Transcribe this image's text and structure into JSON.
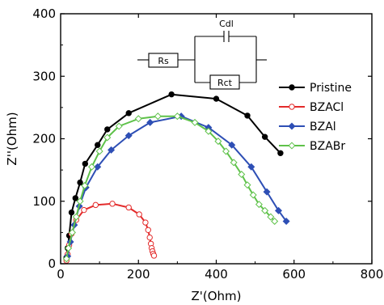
{
  "chart_data": {
    "type": "scatter",
    "xlabel": "Z'(Ohm)",
    "ylabel": "Z''(Ohm)",
    "xlim": [
      0,
      800
    ],
    "ylim": [
      0,
      400
    ],
    "xticks": [
      "0",
      "200",
      "400",
      "600",
      "800"
    ],
    "yticks": [
      "0",
      "100",
      "200",
      "300",
      "400"
    ],
    "legend_position": "right",
    "circuit": {
      "rs": "Rs",
      "cdl": "Cdl",
      "rct": "Rct"
    },
    "series": [
      {
        "name": "Pristine",
        "color": "#000000",
        "marker": "filled-circle",
        "points": [
          [
            15,
            10
          ],
          [
            18,
            25
          ],
          [
            22,
            45
          ],
          [
            28,
            82
          ],
          [
            38,
            105
          ],
          [
            50,
            130
          ],
          [
            63,
            160
          ],
          [
            95,
            190
          ],
          [
            120,
            215
          ],
          [
            175,
            241
          ],
          [
            285,
            271
          ],
          [
            400,
            264
          ],
          [
            480,
            237
          ],
          [
            525,
            203
          ],
          [
            565,
            177
          ]
        ]
      },
      {
        "name": "BZACl",
        "color": "#e32b2b",
        "marker": "open-circle",
        "points": [
          [
            15,
            5
          ],
          [
            18,
            15
          ],
          [
            22,
            30
          ],
          [
            28,
            48
          ],
          [
            40,
            70
          ],
          [
            60,
            86
          ],
          [
            90,
            94
          ],
          [
            133,
            96
          ],
          [
            175,
            90
          ],
          [
            202,
            79
          ],
          [
            218,
            66
          ],
          [
            225,
            54
          ],
          [
            229,
            42
          ],
          [
            232,
            32
          ],
          [
            234,
            25
          ],
          [
            236,
            20
          ],
          [
            238,
            16
          ],
          [
            240,
            13
          ]
        ]
      },
      {
        "name": "BZAl",
        "color": "#2e4fb5",
        "marker": "filled-diamond",
        "points": [
          [
            18,
            12
          ],
          [
            25,
            35
          ],
          [
            35,
            62
          ],
          [
            48,
            92
          ],
          [
            65,
            122
          ],
          [
            95,
            155
          ],
          [
            130,
            182
          ],
          [
            175,
            205
          ],
          [
            230,
            226
          ],
          [
            310,
            236
          ],
          [
            380,
            218
          ],
          [
            440,
            190
          ],
          [
            490,
            155
          ],
          [
            530,
            115
          ],
          [
            560,
            85
          ],
          [
            580,
            68
          ]
        ]
      },
      {
        "name": "BZABr",
        "color": "#5fc24a",
        "marker": "open-diamond",
        "points": [
          [
            15,
            8
          ],
          [
            20,
            25
          ],
          [
            30,
            50
          ],
          [
            40,
            75
          ],
          [
            50,
            100
          ],
          [
            62,
            125
          ],
          [
            80,
            155
          ],
          [
            100,
            180
          ],
          [
            120,
            202
          ],
          [
            150,
            220
          ],
          [
            200,
            232
          ],
          [
            250,
            236
          ],
          [
            300,
            236
          ],
          [
            345,
            226
          ],
          [
            380,
            212
          ],
          [
            405,
            196
          ],
          [
            425,
            180
          ],
          [
            445,
            162
          ],
          [
            465,
            143
          ],
          [
            480,
            126
          ],
          [
            495,
            110
          ],
          [
            510,
            95
          ],
          [
            525,
            85
          ],
          [
            540,
            75
          ],
          [
            550,
            68
          ]
        ]
      }
    ]
  }
}
